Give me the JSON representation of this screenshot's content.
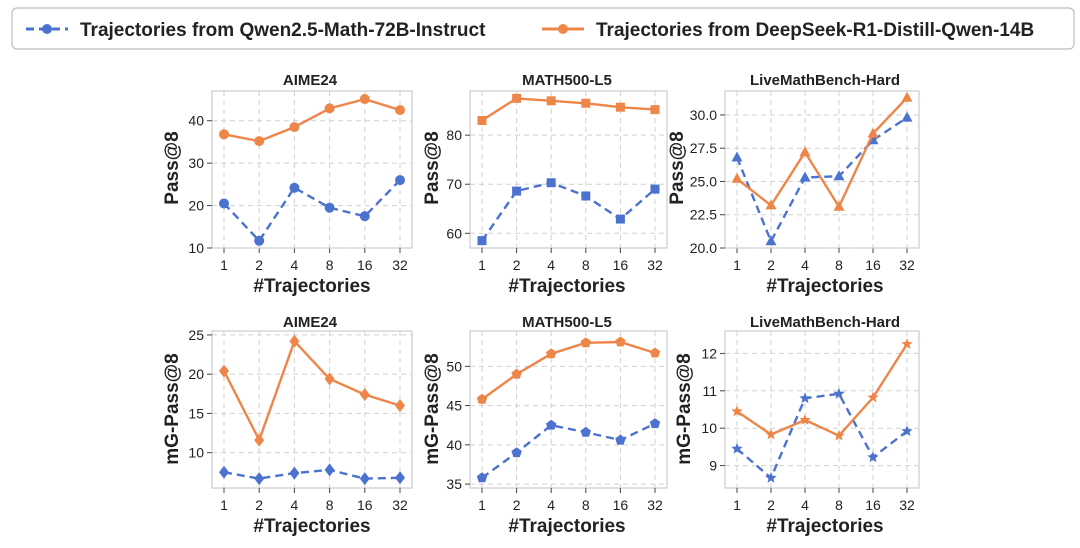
{
  "legend": {
    "series_a": "Trajectories from Qwen2.5-Math-72B-Instruct",
    "series_b": "Trajectories from DeepSeek-R1-Distill-Qwen-14B"
  },
  "colors": {
    "series_a": "#4c72d0",
    "series_b": "#ee8549"
  },
  "chart_data": [
    {
      "type": "line",
      "title": "AIME24",
      "xlabel": "#Trajectories",
      "ylabel": "Pass@8",
      "categories": [
        "1",
        "2",
        "4",
        "8",
        "16",
        "32"
      ],
      "ylim": [
        10,
        47
      ],
      "yticks": [
        10,
        20,
        30,
        40
      ],
      "ytick_labels": [
        "10",
        "20",
        "30",
        "40"
      ],
      "marker": "circle",
      "series": [
        {
          "name": "Trajectories from Qwen2.5-Math-72B-Instruct",
          "values": [
            20.5,
            11.7,
            24.2,
            19.5,
            17.5,
            26.0
          ]
        },
        {
          "name": "Trajectories from DeepSeek-R1-Distill-Qwen-14B",
          "values": [
            36.8,
            35.2,
            38.5,
            42.9,
            45.1,
            42.5
          ]
        }
      ]
    },
    {
      "type": "line",
      "title": "MATH500-L5",
      "xlabel": "#Trajectories",
      "ylabel": "Pass@8",
      "categories": [
        "1",
        "2",
        "4",
        "8",
        "16",
        "32"
      ],
      "ylim": [
        57,
        89
      ],
      "yticks": [
        60,
        70,
        80
      ],
      "ytick_labels": [
        "60",
        "70",
        "80"
      ],
      "marker": "square",
      "series": [
        {
          "name": "Trajectories from Qwen2.5-Math-72B-Instruct",
          "values": [
            58.5,
            68.6,
            70.3,
            67.6,
            62.9,
            69.0
          ]
        },
        {
          "name": "Trajectories from DeepSeek-R1-Distill-Qwen-14B",
          "values": [
            83.0,
            87.5,
            87.0,
            86.5,
            85.7,
            85.2
          ]
        }
      ]
    },
    {
      "type": "line",
      "title": "LiveMathBench-Hard",
      "xlabel": "#Trajectories",
      "ylabel": "Pass@8",
      "categories": [
        "1",
        "2",
        "4",
        "8",
        "16",
        "32"
      ],
      "ylim": [
        20,
        31.8
      ],
      "yticks": [
        20,
        22.5,
        25,
        27.5,
        30
      ],
      "ytick_labels": [
        "20.0",
        "22.5",
        "25.0",
        "27.5",
        "30.0"
      ],
      "marker": "triangle",
      "series": [
        {
          "name": "Trajectories from Qwen2.5-Math-72B-Instruct",
          "values": [
            26.8,
            20.5,
            25.3,
            25.4,
            28.1,
            29.8
          ]
        },
        {
          "name": "Trajectories from DeepSeek-R1-Distill-Qwen-14B",
          "values": [
            25.2,
            23.2,
            27.2,
            23.1,
            28.6,
            31.3
          ]
        }
      ]
    },
    {
      "type": "line",
      "title": "AIME24",
      "xlabel": "#Trajectories",
      "ylabel": "mG-Pass@8",
      "categories": [
        "1",
        "2",
        "4",
        "8",
        "16",
        "32"
      ],
      "ylim": [
        5.5,
        25.5
      ],
      "yticks": [
        10,
        15,
        20,
        25
      ],
      "ytick_labels": [
        "10",
        "15",
        "20",
        "25"
      ],
      "marker": "diamond",
      "series": [
        {
          "name": "Trajectories from Qwen2.5-Math-72B-Instruct",
          "values": [
            7.5,
            6.7,
            7.4,
            7.8,
            6.7,
            6.8
          ]
        },
        {
          "name": "Trajectories from DeepSeek-R1-Distill-Qwen-14B",
          "values": [
            20.4,
            11.6,
            24.2,
            19.4,
            17.4,
            16.0
          ]
        }
      ]
    },
    {
      "type": "line",
      "title": "MATH500-L5",
      "xlabel": "#Trajectories",
      "ylabel": "mG-Pass@8",
      "categories": [
        "1",
        "2",
        "4",
        "8",
        "16",
        "32"
      ],
      "ylim": [
        34.5,
        54.5
      ],
      "yticks": [
        35,
        40,
        45,
        50
      ],
      "ytick_labels": [
        "35",
        "40",
        "45",
        "50"
      ],
      "marker": "pentagon",
      "series": [
        {
          "name": "Trajectories from Qwen2.5-Math-72B-Instruct",
          "values": [
            35.8,
            39.0,
            42.5,
            41.6,
            40.6,
            42.7
          ]
        },
        {
          "name": "Trajectories from DeepSeek-R1-Distill-Qwen-14B",
          "values": [
            45.8,
            49.0,
            51.6,
            53.0,
            53.1,
            51.7
          ]
        }
      ]
    },
    {
      "type": "line",
      "title": "LiveMathBench-Hard",
      "xlabel": "#Trajectories",
      "ylabel": "mG-Pass@8",
      "categories": [
        "1",
        "2",
        "4",
        "8",
        "16",
        "32"
      ],
      "ylim": [
        8.4,
        12.6
      ],
      "yticks": [
        9,
        10,
        11,
        12
      ],
      "ytick_labels": [
        "9",
        "10",
        "11",
        "12"
      ],
      "marker": "star",
      "series": [
        {
          "name": "Trajectories from Qwen2.5-Math-72B-Instruct",
          "values": [
            9.45,
            8.67,
            10.8,
            10.92,
            9.22,
            9.92
          ]
        },
        {
          "name": "Trajectories from DeepSeek-R1-Distill-Qwen-14B",
          "values": [
            10.45,
            9.83,
            10.22,
            9.8,
            10.82,
            12.25
          ]
        }
      ]
    }
  ]
}
